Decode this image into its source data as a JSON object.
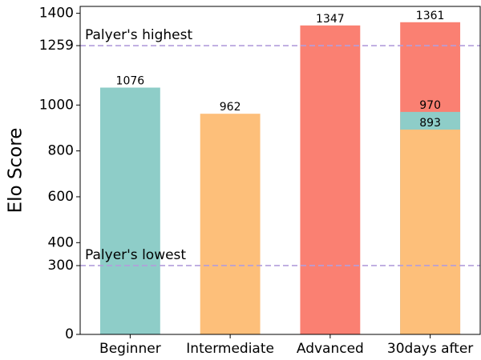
{
  "chart_data": {
    "type": "bar",
    "overlap": true,
    "ylabel": "Elo Score",
    "categories": [
      "Beginner",
      "Intermediate",
      "Advanced",
      "30days after"
    ],
    "series": [
      {
        "color": "#fa8072",
        "values": [
          null,
          null,
          1347,
          1361
        ]
      },
      {
        "color": "#8ecdc8",
        "values": [
          1076,
          null,
          null,
          970
        ]
      },
      {
        "color": "#fdbf7a",
        "values": [
          null,
          962,
          null,
          893
        ]
      }
    ],
    "hlines": [
      {
        "value": 1259,
        "label": "Palyer's highest",
        "color": "#b39ddb"
      },
      {
        "value": 300,
        "label": "Palyer's lowest",
        "color": "#b39ddb"
      }
    ],
    "ylim": [
      0,
      1430
    ],
    "yticks": [
      0,
      300,
      400,
      600,
      800,
      1000,
      1259,
      1400
    ],
    "grid": false
  }
}
